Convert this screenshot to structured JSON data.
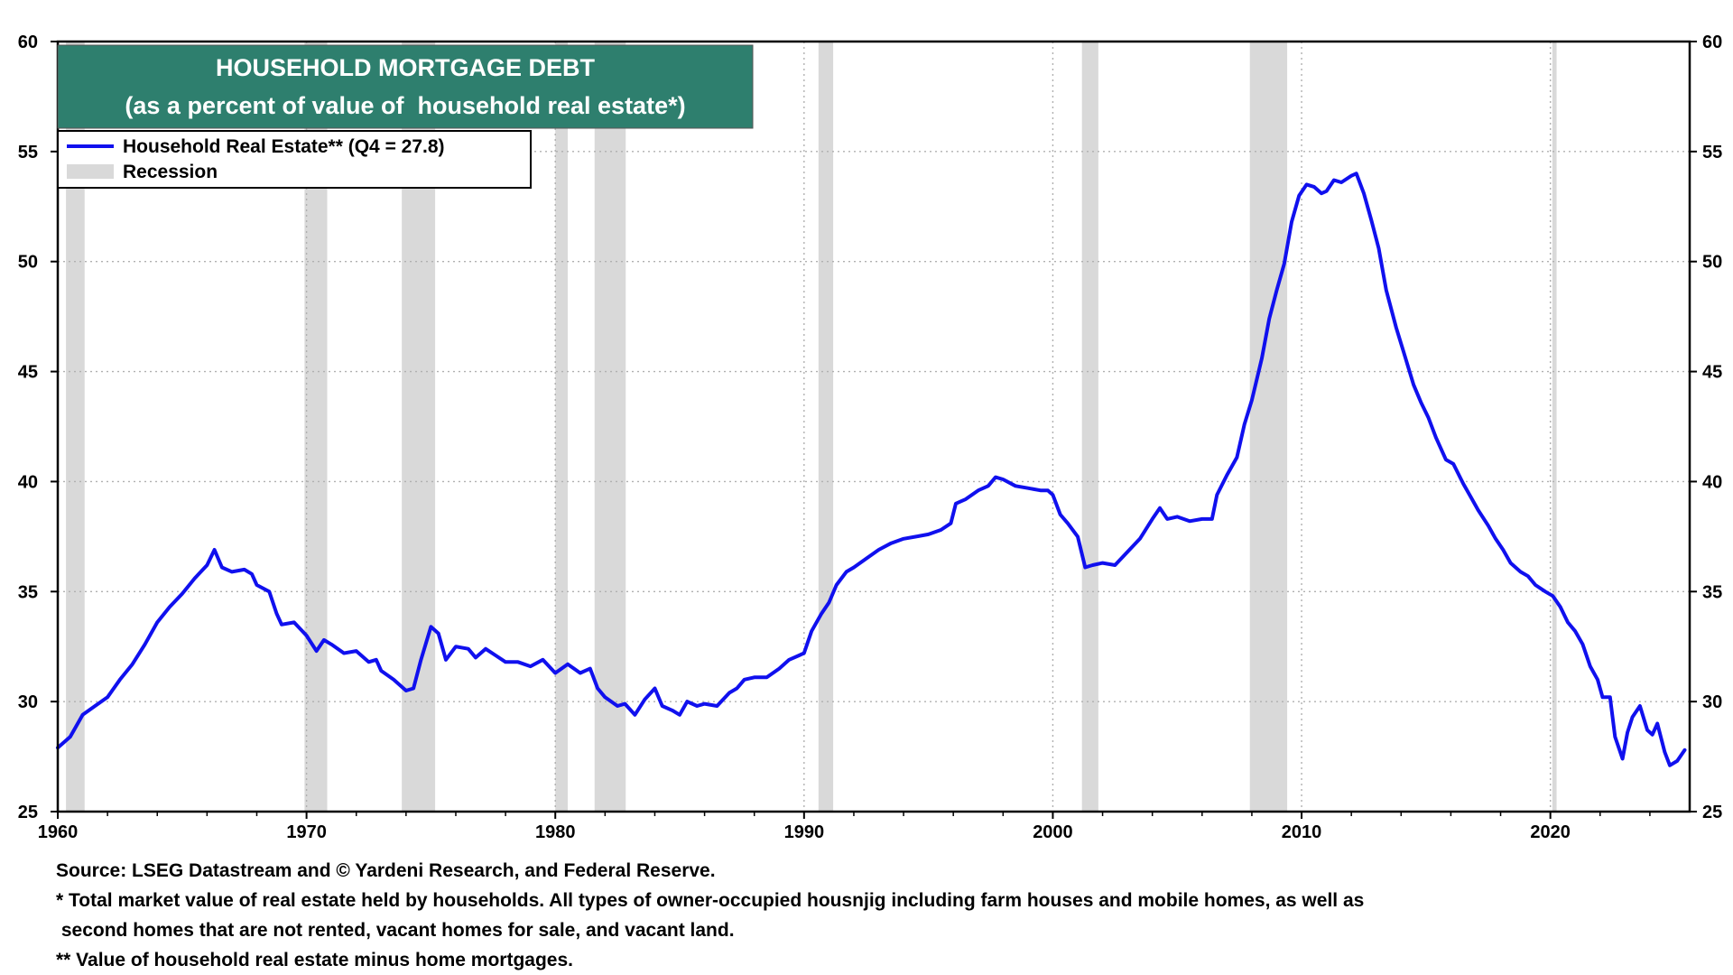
{
  "chart_data": {
    "type": "line",
    "title": "HOUSEHOLD MORTGAGE DEBT",
    "subtitle": "(as a percent of value of  household real estate*)",
    "xlim": [
      1960,
      2025.6
    ],
    "ylim": [
      25,
      60
    ],
    "x_ticks": [
      "1960",
      "1970",
      "1980",
      "1990",
      "2000",
      "2010",
      "2020"
    ],
    "y_ticks": [
      "25",
      "30",
      "35",
      "40",
      "45",
      "50",
      "55",
      "60"
    ],
    "grid": true,
    "legend_placement": "top-left",
    "series": [
      {
        "name": "Household Real Estate** (Q4 = 27.8)",
        "color": "#1010ee",
        "points": [
          [
            1960.0,
            27.9
          ],
          [
            1960.5,
            28.4
          ],
          [
            1961.0,
            29.4
          ],
          [
            1961.5,
            29.8
          ],
          [
            1962.0,
            30.2
          ],
          [
            1962.5,
            31.0
          ],
          [
            1963.0,
            31.7
          ],
          [
            1963.5,
            32.6
          ],
          [
            1964.0,
            33.6
          ],
          [
            1964.5,
            34.3
          ],
          [
            1965.0,
            34.9
          ],
          [
            1965.5,
            35.6
          ],
          [
            1966.0,
            36.2
          ],
          [
            1966.3,
            36.9
          ],
          [
            1966.6,
            36.1
          ],
          [
            1967.0,
            35.9
          ],
          [
            1967.5,
            36.0
          ],
          [
            1967.8,
            35.8
          ],
          [
            1968.0,
            35.3
          ],
          [
            1968.5,
            35.0
          ],
          [
            1968.8,
            34.0
          ],
          [
            1969.0,
            33.5
          ],
          [
            1969.5,
            33.6
          ],
          [
            1970.0,
            33.0
          ],
          [
            1970.4,
            32.3
          ],
          [
            1970.7,
            32.8
          ],
          [
            1971.0,
            32.6
          ],
          [
            1971.5,
            32.2
          ],
          [
            1972.0,
            32.3
          ],
          [
            1972.5,
            31.8
          ],
          [
            1972.8,
            31.9
          ],
          [
            1973.0,
            31.4
          ],
          [
            1973.5,
            31.0
          ],
          [
            1974.0,
            30.5
          ],
          [
            1974.3,
            30.6
          ],
          [
            1974.6,
            31.9
          ],
          [
            1975.0,
            33.4
          ],
          [
            1975.3,
            33.1
          ],
          [
            1975.6,
            31.9
          ],
          [
            1976.0,
            32.5
          ],
          [
            1976.5,
            32.4
          ],
          [
            1976.8,
            32.0
          ],
          [
            1977.2,
            32.4
          ],
          [
            1977.6,
            32.1
          ],
          [
            1978.0,
            31.8
          ],
          [
            1978.5,
            31.8
          ],
          [
            1979.0,
            31.6
          ],
          [
            1979.5,
            31.9
          ],
          [
            1980.0,
            31.3
          ],
          [
            1980.5,
            31.7
          ],
          [
            1981.0,
            31.3
          ],
          [
            1981.4,
            31.5
          ],
          [
            1981.7,
            30.6
          ],
          [
            1982.0,
            30.2
          ],
          [
            1982.5,
            29.8
          ],
          [
            1982.8,
            29.9
          ],
          [
            1983.2,
            29.4
          ],
          [
            1983.6,
            30.1
          ],
          [
            1984.0,
            30.6
          ],
          [
            1984.3,
            29.8
          ],
          [
            1984.7,
            29.6
          ],
          [
            1985.0,
            29.4
          ],
          [
            1985.3,
            30.0
          ],
          [
            1985.7,
            29.8
          ],
          [
            1986.0,
            29.9
          ],
          [
            1986.5,
            29.8
          ],
          [
            1987.0,
            30.4
          ],
          [
            1987.3,
            30.6
          ],
          [
            1987.6,
            31.0
          ],
          [
            1988.0,
            31.1
          ],
          [
            1988.5,
            31.1
          ],
          [
            1989.0,
            31.5
          ],
          [
            1989.4,
            31.9
          ],
          [
            1989.8,
            32.1
          ],
          [
            1990.0,
            32.2
          ],
          [
            1990.3,
            33.2
          ],
          [
            1990.7,
            34.0
          ],
          [
            1991.0,
            34.5
          ],
          [
            1991.3,
            35.3
          ],
          [
            1991.7,
            35.9
          ],
          [
            1992.0,
            36.1
          ],
          [
            1992.5,
            36.5
          ],
          [
            1993.0,
            36.9
          ],
          [
            1993.5,
            37.2
          ],
          [
            1994.0,
            37.4
          ],
          [
            1994.5,
            37.5
          ],
          [
            1995.0,
            37.6
          ],
          [
            1995.5,
            37.8
          ],
          [
            1995.9,
            38.1
          ],
          [
            1996.1,
            39.0
          ],
          [
            1996.5,
            39.2
          ],
          [
            1997.0,
            39.6
          ],
          [
            1997.4,
            39.8
          ],
          [
            1997.7,
            40.2
          ],
          [
            1998.0,
            40.1
          ],
          [
            1998.5,
            39.8
          ],
          [
            1999.0,
            39.7
          ],
          [
            1999.5,
            39.6
          ],
          [
            1999.8,
            39.6
          ],
          [
            2000.0,
            39.4
          ],
          [
            2000.3,
            38.5
          ],
          [
            2000.6,
            38.1
          ],
          [
            2001.0,
            37.5
          ],
          [
            2001.3,
            36.1
          ],
          [
            2001.6,
            36.2
          ],
          [
            2002.0,
            36.3
          ],
          [
            2002.5,
            36.2
          ],
          [
            2003.0,
            36.8
          ],
          [
            2003.5,
            37.4
          ],
          [
            2004.0,
            38.3
          ],
          [
            2004.3,
            38.8
          ],
          [
            2004.6,
            38.3
          ],
          [
            2005.0,
            38.4
          ],
          [
            2005.5,
            38.2
          ],
          [
            2006.0,
            38.3
          ],
          [
            2006.4,
            38.3
          ],
          [
            2006.6,
            39.4
          ],
          [
            2007.0,
            40.3
          ],
          [
            2007.4,
            41.1
          ],
          [
            2007.7,
            42.6
          ],
          [
            2008.0,
            43.7
          ],
          [
            2008.4,
            45.6
          ],
          [
            2008.7,
            47.4
          ],
          [
            2009.0,
            48.7
          ],
          [
            2009.3,
            49.9
          ],
          [
            2009.6,
            51.8
          ],
          [
            2009.9,
            53.0
          ],
          [
            2010.2,
            53.5
          ],
          [
            2010.5,
            53.4
          ],
          [
            2010.8,
            53.1
          ],
          [
            2011.0,
            53.2
          ],
          [
            2011.3,
            53.7
          ],
          [
            2011.6,
            53.6
          ],
          [
            2012.0,
            53.9
          ],
          [
            2012.2,
            54.0
          ],
          [
            2012.5,
            53.1
          ],
          [
            2012.8,
            51.9
          ],
          [
            2013.1,
            50.6
          ],
          [
            2013.4,
            48.7
          ],
          [
            2013.8,
            47.0
          ],
          [
            2014.1,
            45.9
          ],
          [
            2014.5,
            44.4
          ],
          [
            2014.8,
            43.6
          ],
          [
            2015.1,
            42.9
          ],
          [
            2015.4,
            42.0
          ],
          [
            2015.8,
            41.0
          ],
          [
            2016.1,
            40.8
          ],
          [
            2016.5,
            39.9
          ],
          [
            2016.8,
            39.3
          ],
          [
            2017.1,
            38.7
          ],
          [
            2017.5,
            38.0
          ],
          [
            2017.8,
            37.4
          ],
          [
            2018.1,
            36.9
          ],
          [
            2018.4,
            36.3
          ],
          [
            2018.8,
            35.9
          ],
          [
            2019.1,
            35.7
          ],
          [
            2019.4,
            35.3
          ],
          [
            2019.8,
            35.0
          ],
          [
            2020.1,
            34.8
          ],
          [
            2020.4,
            34.3
          ],
          [
            2020.7,
            33.6
          ],
          [
            2021.0,
            33.2
          ],
          [
            2021.3,
            32.6
          ],
          [
            2021.6,
            31.6
          ],
          [
            2021.9,
            31.0
          ],
          [
            2022.1,
            30.2
          ],
          [
            2022.4,
            30.2
          ],
          [
            2022.6,
            28.4
          ],
          [
            2022.9,
            27.4
          ],
          [
            2023.1,
            28.6
          ],
          [
            2023.3,
            29.3
          ],
          [
            2023.6,
            29.8
          ],
          [
            2023.9,
            28.7
          ],
          [
            2024.1,
            28.5
          ],
          [
            2024.3,
            29.0
          ],
          [
            2024.6,
            27.7
          ],
          [
            2024.8,
            27.1
          ],
          [
            2025.1,
            27.3
          ],
          [
            2025.4,
            27.8
          ]
        ]
      }
    ],
    "recessions": [
      [
        1960.33,
        1961.08
      ],
      [
        1969.92,
        1970.83
      ],
      [
        1973.83,
        1975.17
      ],
      [
        1980.0,
        1980.5
      ],
      [
        1981.58,
        1982.83
      ],
      [
        1990.58,
        1991.17
      ],
      [
        2001.17,
        2001.83
      ],
      [
        2007.92,
        2009.42
      ],
      [
        2020.08,
        2020.25
      ]
    ],
    "legend": {
      "line_label": "Household Real Estate** (Q4 = 27.8)",
      "recession_label": "Recession"
    }
  },
  "footnotes": {
    "source": "Source: LSEG Datastream and © Yardeni Research, and Federal Reserve.",
    "note1_line1": "* Total market value of real estate held by households. All types of owner-occupied housnjig including farm houses and mobile homes, as well as",
    "note1_line2": " second homes that are not rented, vacant homes for sale, and vacant land.",
    "note2": "** Value of household real estate minus home mortgages."
  },
  "colors": {
    "line": "#1010ee",
    "recession": "#d9d9d9",
    "title_bg": "#2e7f6e",
    "grid": "#b0b0b0"
  }
}
